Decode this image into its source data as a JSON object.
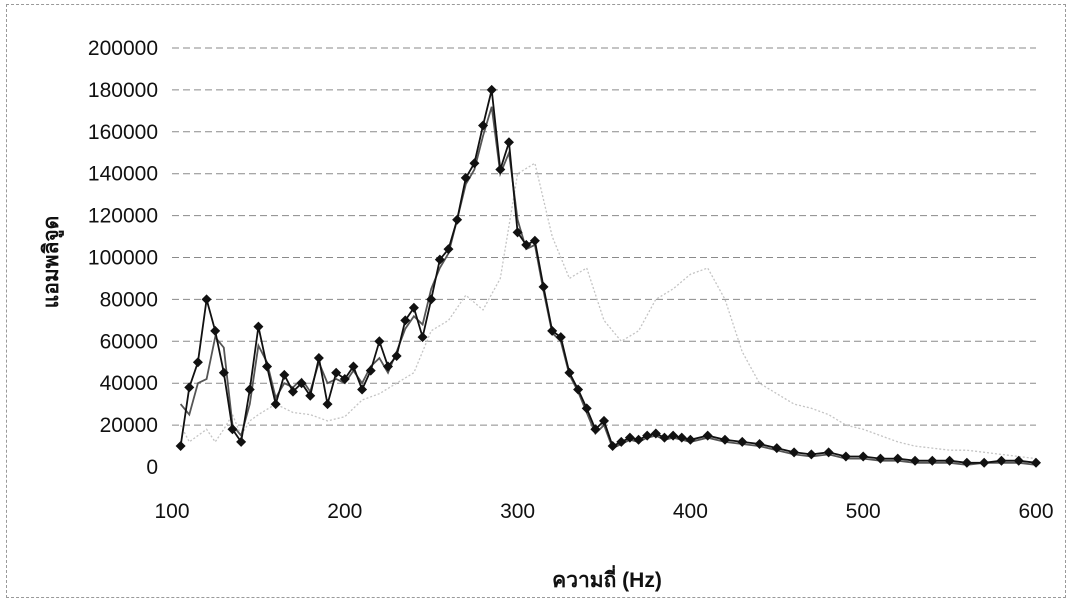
{
  "chart_data": {
    "type": "line",
    "title": "",
    "xlabel": "ความถี่ (Hz)",
    "ylabel": "แอมพลิจูด",
    "xlim": [
      100,
      600
    ],
    "ylim": [
      0,
      200000
    ],
    "x_ticks": [
      100,
      200,
      300,
      400,
      500,
      600
    ],
    "y_ticks": [
      0,
      20000,
      40000,
      60000,
      80000,
      100000,
      120000,
      140000,
      160000,
      180000,
      200000
    ],
    "grid": "horizontal dashed",
    "legend": "none",
    "series": [
      {
        "marker": "diamond",
        "color": "#111111",
        "x": [
          105,
          110,
          115,
          120,
          125,
          130,
          135,
          140,
          145,
          150,
          155,
          160,
          165,
          170,
          175,
          180,
          185,
          190,
          195,
          200,
          205,
          210,
          215,
          220,
          225,
          230,
          235,
          240,
          245,
          250,
          255,
          260,
          265,
          270,
          275,
          280,
          285,
          290,
          295,
          300,
          305,
          310,
          315,
          320,
          325,
          330,
          335,
          340,
          345,
          350,
          355,
          360,
          365,
          370,
          375,
          380,
          385,
          390,
          395,
          400,
          410,
          420,
          430,
          440,
          450,
          460,
          470,
          480,
          490,
          500,
          510,
          520,
          530,
          540,
          550,
          560,
          570,
          580,
          590,
          600
        ],
        "y": [
          10000,
          38000,
          50000,
          80000,
          65000,
          45000,
          18000,
          12000,
          37000,
          67000,
          48000,
          30000,
          44000,
          36000,
          40000,
          34000,
          52000,
          30000,
          45000,
          42000,
          48000,
          37000,
          46000,
          60000,
          48000,
          53000,
          70000,
          76000,
          62000,
          80000,
          99000,
          104000,
          118000,
          138000,
          145000,
          163000,
          180000,
          142000,
          155000,
          112000,
          106000,
          108000,
          86000,
          65000,
          62000,
          45000,
          37000,
          28000,
          18000,
          22000,
          10000,
          12000,
          14000,
          13000,
          15000,
          16000,
          14000,
          15000,
          14000,
          13000,
          15000,
          13000,
          12000,
          11000,
          9000,
          7000,
          6000,
          7000,
          5000,
          5000,
          4000,
          4000,
          3000,
          3000,
          3000,
          2000,
          2000,
          3000,
          3000,
          2000
        ]
      },
      {
        "marker": "none",
        "color": "#555555",
        "x": [
          105,
          110,
          115,
          120,
          125,
          130,
          135,
          140,
          145,
          150,
          155,
          160,
          165,
          170,
          175,
          180,
          185,
          190,
          195,
          200,
          205,
          210,
          215,
          220,
          225,
          230,
          235,
          240,
          245,
          250,
          255,
          260,
          265,
          270,
          275,
          280,
          285,
          290,
          295,
          300,
          305,
          310,
          315,
          320,
          325,
          330,
          335,
          340,
          345,
          350,
          355,
          360,
          365,
          370,
          375,
          380,
          385,
          390,
          395,
          400,
          410,
          420,
          430,
          440,
          450,
          460,
          470,
          480,
          490,
          500,
          510,
          520,
          530,
          540,
          550,
          560,
          570,
          580,
          590,
          600
        ],
        "y": [
          30000,
          25000,
          40000,
          42000,
          62000,
          57000,
          20000,
          15000,
          30000,
          58000,
          50000,
          33000,
          40000,
          38000,
          42000,
          36000,
          50000,
          40000,
          42000,
          40000,
          46000,
          40000,
          48000,
          52000,
          45000,
          55000,
          66000,
          72000,
          68000,
          85000,
          95000,
          102000,
          118000,
          135000,
          142000,
          158000,
          172000,
          140000,
          150000,
          118000,
          104000,
          106000,
          84000,
          64000,
          60000,
          44000,
          36000,
          26000,
          16000,
          20000,
          9000,
          11000,
          13000,
          12000,
          14000,
          15000,
          13000,
          14000,
          13000,
          12000,
          14000,
          12000,
          11000,
          10000,
          8000,
          6000,
          5000,
          6000,
          4000,
          4000,
          3000,
          3000,
          2000,
          2000,
          2000,
          1000,
          2000,
          2000,
          2000,
          1000
        ]
      },
      {
        "marker": "none",
        "color": "#c4c4c4",
        "x": [
          105,
          110,
          115,
          120,
          125,
          130,
          135,
          140,
          145,
          150,
          160,
          170,
          180,
          190,
          200,
          210,
          220,
          230,
          240,
          250,
          260,
          270,
          280,
          290,
          300,
          310,
          320,
          330,
          340,
          350,
          360,
          370,
          380,
          390,
          400,
          410,
          420,
          430,
          440,
          450,
          460,
          470,
          480,
          490,
          500,
          510,
          520,
          530,
          540,
          550,
          560,
          570,
          580,
          590,
          600
        ],
        "y": [
          20000,
          12000,
          15000,
          18000,
          12000,
          18000,
          25000,
          15000,
          22000,
          25000,
          30000,
          26000,
          25000,
          22000,
          24000,
          32000,
          35000,
          40000,
          45000,
          65000,
          70000,
          82000,
          75000,
          90000,
          140000,
          145000,
          110000,
          90000,
          95000,
          70000,
          60000,
          65000,
          80000,
          85000,
          92000,
          95000,
          80000,
          55000,
          40000,
          35000,
          30000,
          28000,
          25000,
          20000,
          18000,
          15000,
          12000,
          10000,
          9000,
          8000,
          8000,
          7000,
          6000,
          5000,
          4000
        ]
      }
    ]
  }
}
